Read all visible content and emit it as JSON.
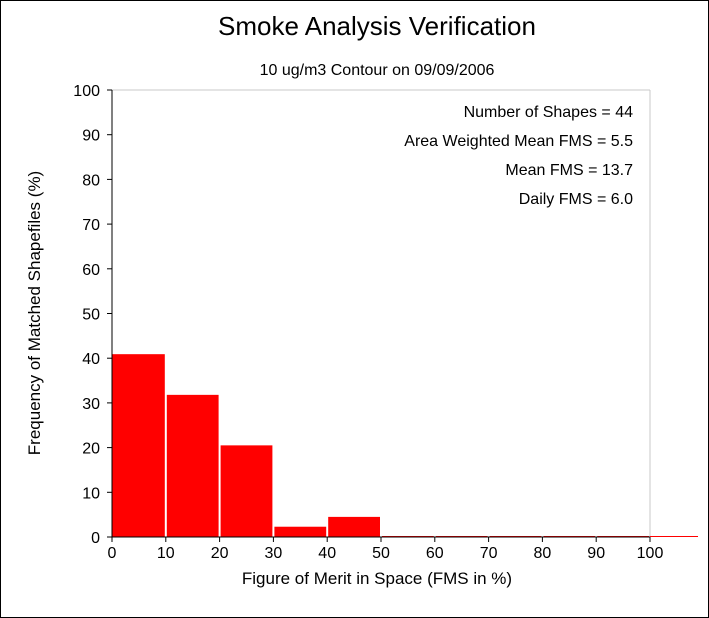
{
  "chart_data": {
    "type": "bar",
    "title": "Smoke Analysis Verification",
    "subtitle": "10 ug/m3 Contour on 09/09/2006",
    "xlabel": "Figure of Merit in Space (FMS in %)",
    "ylabel": "Frequency of Matched Shapefiles (%)",
    "xlim": [
      0,
      100
    ],
    "ylim": [
      0,
      100
    ],
    "x_ticks": [
      0,
      10,
      20,
      30,
      40,
      50,
      60,
      70,
      80,
      90,
      100
    ],
    "y_ticks": [
      0,
      10,
      20,
      30,
      40,
      50,
      60,
      70,
      80,
      90,
      100
    ],
    "bin_width": 10,
    "bins": [
      {
        "start": 0,
        "value": 40.9
      },
      {
        "start": 10,
        "value": 31.8
      },
      {
        "start": 20,
        "value": 20.5
      },
      {
        "start": 30,
        "value": 2.3
      },
      {
        "start": 40,
        "value": 4.5
      },
      {
        "start": 50,
        "value": 0
      },
      {
        "start": 60,
        "value": 0
      },
      {
        "start": 70,
        "value": 0
      },
      {
        "start": 80,
        "value": 0
      },
      {
        "start": 90,
        "value": 0
      }
    ],
    "bar_color": "#ff0000",
    "grid": false,
    "annotations": [
      "Number of Shapes = 44",
      "Area Weighted Mean FMS = 5.5",
      "Mean FMS = 13.7",
      "Daily FMS = 6.0"
    ]
  }
}
